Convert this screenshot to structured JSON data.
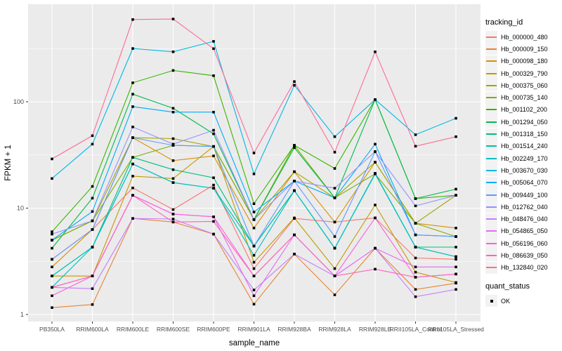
{
  "chart_data": {
    "type": "line",
    "title": "",
    "xlabel": "sample_name",
    "ylabel": "FPKM + 1",
    "y_scale": "log10",
    "ylim": [
      0.86,
      830
    ],
    "y_ticks": [
      1,
      10,
      100
    ],
    "y_minor_breaks": [
      3.162,
      31.62,
      316.2
    ],
    "grid": true,
    "legend_position": "right",
    "point_shape": "black-square",
    "categories": [
      "PB350LA",
      "RRIM600LA",
      "RRIM600LE",
      "RRIM600SE",
      "RRIM600PE",
      "RRIM901LA",
      "RRIM928BA",
      "RRIM928LA",
      "RRIM928LB",
      "RRII105LA_Control",
      "RRII105LA_Stressed"
    ],
    "series": [
      {
        "name": "Hb_000000_480",
        "color": "#F8766D",
        "values": [
          3.3,
          6.3,
          15.5,
          9.7,
          16.5,
          2.7,
          8.0,
          7.4,
          8.1,
          3.4,
          3.3
        ]
      },
      {
        "name": "Hb_000009_150",
        "color": "#EA8331",
        "values": [
          1.16,
          1.24,
          8.0,
          7.4,
          5.7,
          1.25,
          3.7,
          1.53,
          4.2,
          1.72,
          1.97
        ]
      },
      {
        "name": "Hb_000098_180",
        "color": "#D89000",
        "values": [
          2.8,
          6.3,
          46,
          28,
          31,
          6.5,
          22,
          7.4,
          27,
          7.2,
          6.5
        ]
      },
      {
        "name": "Hb_000329_790",
        "color": "#C09B00",
        "values": [
          2.3,
          2.3,
          20,
          19,
          38,
          3.1,
          8.1,
          2.7,
          10.7,
          2.5,
          2.0
        ]
      },
      {
        "name": "Hb_000375_060",
        "color": "#A3A500",
        "values": [
          5.0,
          7.6,
          46,
          45,
          38,
          7.8,
          22,
          12.5,
          27,
          7.2,
          13.2
        ]
      },
      {
        "name": "Hb_000735_140",
        "color": "#7CAE00",
        "values": [
          5.0,
          7.6,
          30,
          39,
          38,
          7.8,
          39,
          12.5,
          21,
          7.2,
          5.4
        ]
      },
      {
        "name": "Hb_001102_200",
        "color": "#39B600",
        "values": [
          6.0,
          16,
          151,
          197,
          176,
          11,
          39,
          23.6,
          105,
          12.3,
          13.2
        ]
      },
      {
        "name": "Hb_001294_050",
        "color": "#00BB4E",
        "values": [
          4.2,
          12.4,
          118,
          87,
          50,
          7.8,
          37,
          12.5,
          105,
          12.3,
          15.1
        ]
      },
      {
        "name": "Hb_001318_150",
        "color": "#00BF7D",
        "values": [
          2.3,
          4.3,
          30,
          23,
          19.3,
          4.4,
          14.6,
          4.2,
          21,
          4.3,
          4.3
        ]
      },
      {
        "name": "Hb_001514_240",
        "color": "#00C1A7",
        "values": [
          2.3,
          4.3,
          26,
          17.4,
          15.4,
          4.4,
          14.6,
          4.2,
          21,
          4.3,
          3.5
        ]
      },
      {
        "name": "Hb_002249_170",
        "color": "#00BFC4",
        "values": [
          1.8,
          4.3,
          26,
          17.4,
          15.4,
          3.6,
          14.6,
          4.2,
          21.3,
          4.3,
          3.5
        ]
      },
      {
        "name": "Hb_003670_030",
        "color": "#00B8E7",
        "values": [
          19,
          40,
          317,
          295,
          370,
          21,
          143,
          47,
          105,
          49,
          70
        ]
      },
      {
        "name": "Hb_005064_070",
        "color": "#00ACFC",
        "values": [
          5.0,
          9.3,
          90,
          80,
          80,
          9.2,
          18,
          12.5,
          40,
          5.6,
          5.4
        ]
      },
      {
        "name": "Hb_009449_100",
        "color": "#5E9BFF",
        "values": [
          3.3,
          6.3,
          46,
          39,
          38,
          4.4,
          18,
          5.4,
          34,
          5.6,
          5.4
        ]
      },
      {
        "name": "Hb_012762_040",
        "color": "#9590FF",
        "values": [
          5.7,
          7.6,
          58,
          40,
          54,
          7.8,
          18,
          15.4,
          34,
          10.5,
          13.2
        ]
      },
      {
        "name": "Hb_048476_040",
        "color": "#C77CFF",
        "values": [
          1.8,
          1.75,
          8.0,
          7.9,
          5.7,
          1.7,
          3.7,
          2.3,
          4.2,
          1.47,
          1.72
        ]
      },
      {
        "name": "Hb_054865_050",
        "color": "#E76BF3",
        "values": [
          1.8,
          2.3,
          13.2,
          8.8,
          8.3,
          1.5,
          5.6,
          2.3,
          4.2,
          2.8,
          2.8
        ]
      },
      {
        "name": "Hb_056196_060",
        "color": "#FA62DB",
        "values": [
          1.5,
          2.3,
          13.2,
          8.8,
          8.3,
          2.3,
          5.6,
          2.3,
          8.1,
          2.24,
          2.4
        ]
      },
      {
        "name": "Hb_086639_050",
        "color": "#FF62BC",
        "values": [
          1.8,
          2.3,
          13.2,
          7.4,
          7.5,
          2.3,
          5.6,
          2.3,
          2.67,
          2.24,
          2.4
        ]
      },
      {
        "name": "Hb_132840_020",
        "color": "#FF6A98",
        "values": [
          29,
          48,
          594,
          600,
          316,
          33,
          155,
          33.6,
          295,
          38.2,
          47
        ]
      }
    ]
  },
  "legend": {
    "tracking_title": "tracking_id",
    "quant_title": "quant_status",
    "quant_items": [
      {
        "label": "OK"
      }
    ]
  },
  "colors": {
    "figure_bg": "#FFFFFF",
    "panel_bg": "#EBEBEB",
    "grid_major": "#FFFFFF",
    "grid_minor": "#FFFFFF",
    "point": "#000000",
    "tick_mark": "#333333",
    "tick_label": "#4D4D4D",
    "axis_title": "#000000",
    "legend_key_bg": "#F2F2F2"
  }
}
